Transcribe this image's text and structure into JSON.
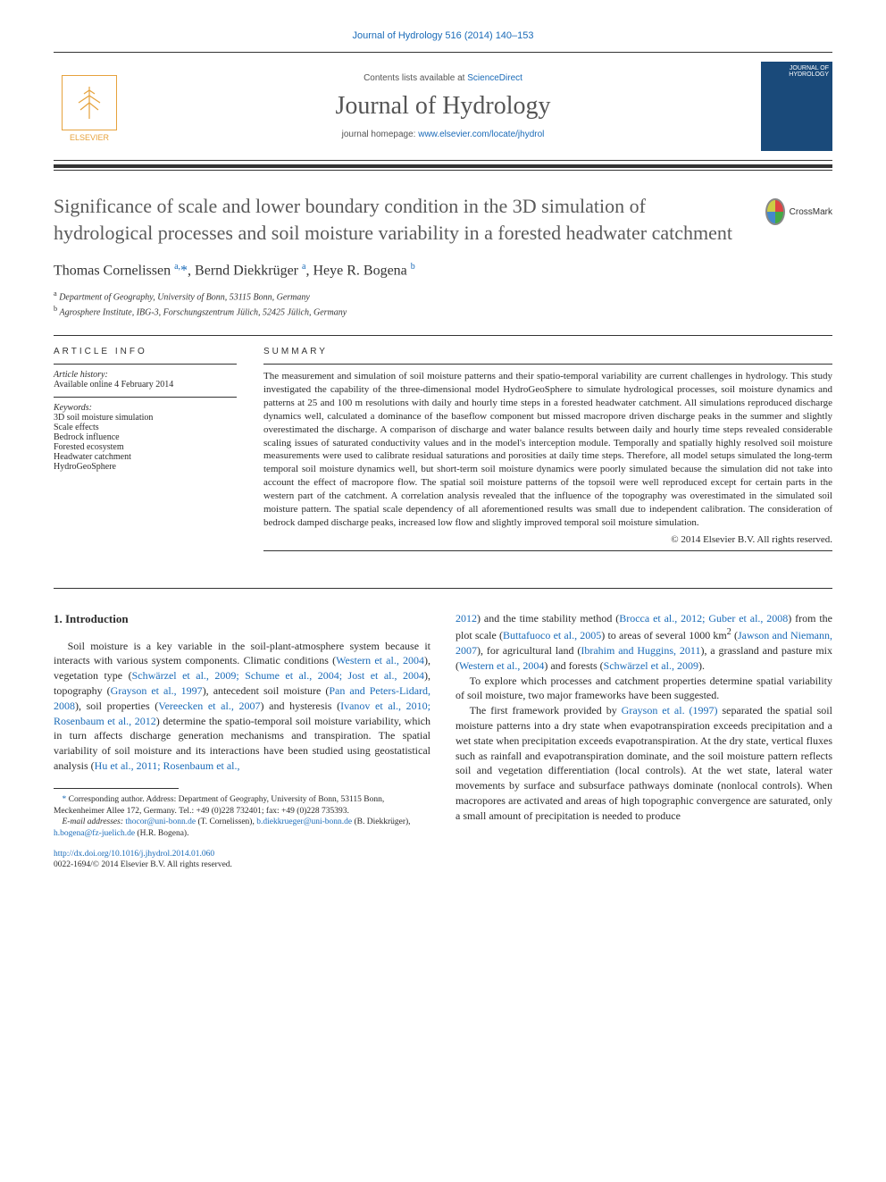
{
  "header": {
    "citation": "Journal of Hydrology 516 (2014) 140–153",
    "contents_prefix": "Contents lists available at ",
    "contents_link": "ScienceDirect",
    "journal_name": "Journal of Hydrology",
    "homepage_prefix": "journal homepage: ",
    "homepage_link": "www.elsevier.com/locate/jhydrol",
    "publisher": "ELSEVIER",
    "cover_label": "JOURNAL OF HYDROLOGY"
  },
  "crossmark": "CrossMark",
  "title": "Significance of scale and lower boundary condition in the 3D simulation of hydrological processes and soil moisture variability in a forested headwater catchment",
  "authors_html": "Thomas Cornelissen <sup>a,</sup><span class='corr'>*</span>, Bernd Diekkrüger <sup>a</sup>, Heye R. Bogena <sup>b</sup>",
  "affiliations": {
    "a": "Department of Geography, University of Bonn, 53115 Bonn, Germany",
    "b": "Agrosphere Institute, IBG-3, Forschungszentrum Jülich, 52425 Jülich, Germany"
  },
  "article_info": {
    "heading": "ARTICLE INFO",
    "history_label": "Article history:",
    "history_value": "Available online 4 February 2014",
    "keywords_label": "Keywords:",
    "keywords": [
      "3D soil moisture simulation",
      "Scale effects",
      "Bedrock influence",
      "Forested ecosystem",
      "Headwater catchment",
      "HydroGeoSphere"
    ]
  },
  "summary": {
    "heading": "SUMMARY",
    "text": "The measurement and simulation of soil moisture patterns and their spatio-temporal variability are current challenges in hydrology. This study investigated the capability of the three-dimensional model HydroGeoSphere to simulate hydrological processes, soil moisture dynamics and patterns at 25 and 100 m resolutions with daily and hourly time steps in a forested headwater catchment. All simulations reproduced discharge dynamics well, calculated a dominance of the baseflow component but missed macropore driven discharge peaks in the summer and slightly overestimated the discharge. A comparison of discharge and water balance results between daily and hourly time steps revealed considerable scaling issues of saturated conductivity values and in the model's interception module. Temporally and spatially highly resolved soil moisture measurements were used to calibrate residual saturations and porosities at daily time steps. Therefore, all model setups simulated the long-term temporal soil moisture dynamics well, but short-term soil moisture dynamics were poorly simulated because the simulation did not take into account the effect of macropore flow. The spatial soil moisture patterns of the topsoil were well reproduced except for certain parts in the western part of the catchment. A correlation analysis revealed that the influence of the topography was overestimated in the simulated soil moisture pattern. The spatial scale dependency of all aforementioned results was small due to independent calibration. The consideration of bedrock damped discharge peaks, increased low flow and slightly improved temporal soil moisture simulation.",
    "copyright": "© 2014 Elsevier B.V. All rights reserved."
  },
  "body": {
    "section_heading": "1. Introduction",
    "p1_pre": "Soil moisture is a key variable in the soil-plant-atmosphere system because it interacts with various system components. Climatic conditions (",
    "ref1": "Western et al., 2004",
    "p1_2": "), vegetation type (",
    "ref2": "Schwärzel et al., 2009; Schume et al., 2004; Jost et al., 2004",
    "p1_3": "), topography (",
    "ref3": "Grayson et al., 1997",
    "p1_4": "), antecedent soil moisture (",
    "ref4": "Pan and Peters-Lidard, 2008",
    "p1_5": "), soil properties (",
    "ref5": "Vereecken et al., 2007",
    "p1_6": ") and hysteresis (",
    "ref6": "Ivanov et al., 2010; Rosenbaum et al., 2012",
    "p1_7": ") determine the spatio-temporal soil moisture variability, which in turn affects discharge generation mechanisms and transpiration. The spatial variability of soil moisture and its interactions have been studied using geostatistical analysis (",
    "ref7": "Hu et al., 2011; Rosenbaum et al.,",
    "col2_cont": "2012",
    "p2_1": ") and the time stability method (",
    "ref8": "Brocca et al., 2012; Guber et al., 2008",
    "p2_2": ") from the plot scale (",
    "ref9": "Buttafuoco et al., 2005",
    "p2_3": ") to areas of several 1000 km",
    "sup2": "2",
    "p2_4": " (",
    "ref10": "Jawson and Niemann, 2007",
    "p2_5": "), for agricultural land (",
    "ref11": "Ibrahim and Huggins, 2011",
    "p2_6": "), a grassland and pasture mix (",
    "ref12": "Western et al., 2004",
    "p2_7": ") and forests (",
    "ref13": "Schwärzel et al., 2009",
    "p2_8": ").",
    "p3": "To explore which processes and catchment properties determine spatial variability of soil moisture, two major frameworks have been suggested.",
    "p4_1": "The first framework provided by ",
    "ref14": "Grayson et al. (1997)",
    "p4_2": " separated the spatial soil moisture patterns into a dry state when evapotranspiration exceeds precipitation and a wet state when precipitation exceeds evapotranspiration. At the dry state, vertical fluxes such as rainfall and evapotranspiration dominate, and the soil moisture pattern reflects soil and vegetation differentiation (local controls). At the wet state, lateral water movements by surface and subsurface pathways dominate (nonlocal controls). When macropores are activated and areas of high topographic convergence are saturated, only a small amount of precipitation is needed to produce"
  },
  "footnotes": {
    "corr": "Corresponding author. Address: Department of Geography, University of Bonn, 53115 Bonn, Meckenheimer Allee 172, Germany. Tel.: +49 (0)228 732401; fax: +49 (0)228 735393.",
    "email_label": "E-mail addresses:",
    "email1": "thocor@uni-bonn.de",
    "email1_who": " (T. Cornelissen), ",
    "email2": "b.diekkrueger@uni-bonn.de",
    "email2_who": " (B. Diekkrüger), ",
    "email3": "h.bogena@fz-juelich.de",
    "email3_who": " (H.R. Bogena)."
  },
  "doi": {
    "url": "http://dx.doi.org/10.1016/j.jhydrol.2014.01.060",
    "issn_line": "0022-1694/© 2014 Elsevier B.V. All rights reserved."
  },
  "colors": {
    "link": "#1a6bb8",
    "orange": "#e6a23c",
    "title_gray": "#5a5a5a"
  }
}
